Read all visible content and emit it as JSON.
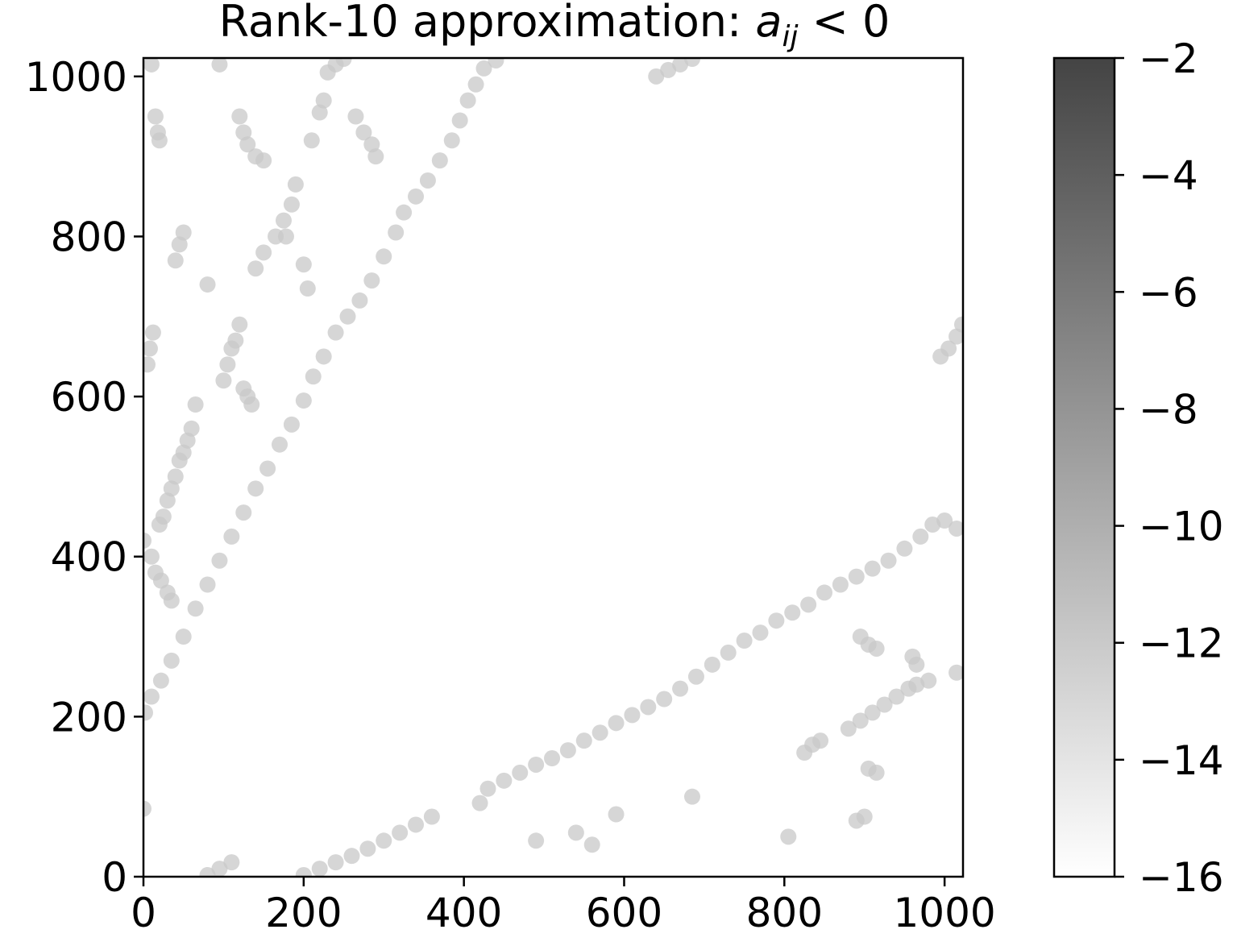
{
  "chart_data": {
    "type": "scatter",
    "title": {
      "prefix": "Rank-10 approximation: ",
      "var": "a",
      "sub": "ij",
      "relation": " < 0"
    },
    "xlabel": "",
    "ylabel": "",
    "xlim": [
      0,
      1023
    ],
    "ylim": [
      0,
      1023
    ],
    "xticks": [
      0,
      200,
      400,
      600,
      800,
      1000
    ],
    "yticks": [
      0,
      200,
      400,
      600,
      800,
      1000
    ],
    "xtick_labels": [
      "0",
      "200",
      "400",
      "600",
      "800",
      "1000"
    ],
    "ytick_labels": [
      "0",
      "200",
      "400",
      "600",
      "800",
      "1000"
    ],
    "grid": false,
    "marker_color": "#c8c8c8",
    "colorbar": {
      "range": [
        -16,
        -2
      ],
      "ticks": [
        -2,
        -4,
        -6,
        -8,
        -10,
        -12,
        -14,
        -16
      ],
      "tick_labels": [
        "−2",
        "−4",
        "−6",
        "−8",
        "−10",
        "−12",
        "−14",
        "−16"
      ],
      "color_low": "#ffffff",
      "color_high": "#444444"
    },
    "series": [
      {
        "points": [
          [
            2,
            205
          ],
          [
            10,
            225
          ],
          [
            22,
            245
          ],
          [
            35,
            270
          ],
          [
            50,
            300
          ],
          [
            65,
            335
          ],
          [
            80,
            365
          ],
          [
            95,
            395
          ],
          [
            110,
            425
          ],
          [
            125,
            455
          ],
          [
            140,
            485
          ],
          [
            155,
            510
          ],
          [
            170,
            540
          ],
          [
            185,
            565
          ],
          [
            200,
            595
          ],
          [
            212,
            625
          ],
          [
            225,
            650
          ],
          [
            240,
            680
          ],
          [
            255,
            700
          ],
          [
            270,
            720
          ],
          [
            285,
            745
          ],
          [
            300,
            775
          ],
          [
            315,
            805
          ],
          [
            325,
            830
          ],
          [
            340,
            850
          ],
          [
            355,
            870
          ],
          [
            370,
            895
          ],
          [
            385,
            920
          ],
          [
            395,
            945
          ],
          [
            405,
            970
          ],
          [
            415,
            990
          ],
          [
            425,
            1010
          ],
          [
            440,
            1020
          ],
          [
            200,
            2
          ],
          [
            220,
            10
          ],
          [
            240,
            18
          ],
          [
            260,
            26
          ],
          [
            280,
            35
          ],
          [
            300,
            45
          ],
          [
            320,
            55
          ],
          [
            340,
            65
          ],
          [
            360,
            75
          ],
          [
            420,
            92
          ],
          [
            430,
            110
          ],
          [
            450,
            120
          ],
          [
            470,
            130
          ],
          [
            490,
            140
          ],
          [
            510,
            148
          ],
          [
            530,
            158
          ],
          [
            550,
            170
          ],
          [
            570,
            180
          ],
          [
            590,
            192
          ],
          [
            610,
            202
          ],
          [
            630,
            212
          ],
          [
            650,
            222
          ],
          [
            670,
            235
          ],
          [
            690,
            250
          ],
          [
            710,
            265
          ],
          [
            730,
            280
          ],
          [
            750,
            295
          ],
          [
            770,
            305
          ],
          [
            790,
            320
          ],
          [
            810,
            330
          ],
          [
            830,
            340
          ],
          [
            850,
            355
          ],
          [
            870,
            365
          ],
          [
            890,
            375
          ],
          [
            910,
            385
          ],
          [
            930,
            395
          ],
          [
            950,
            410
          ],
          [
            970,
            425
          ],
          [
            985,
            440
          ],
          [
            1000,
            445
          ],
          [
            1015,
            435
          ],
          [
            80,
            2
          ],
          [
            95,
            10
          ],
          [
            110,
            18
          ],
          [
            10,
            1015
          ],
          [
            15,
            950
          ],
          [
            18,
            930
          ],
          [
            20,
            920
          ],
          [
            40,
            770
          ],
          [
            45,
            790
          ],
          [
            50,
            805
          ],
          [
            65,
            590
          ],
          [
            60,
            560
          ],
          [
            55,
            545
          ],
          [
            50,
            530
          ],
          [
            45,
            520
          ],
          [
            40,
            500
          ],
          [
            35,
            485
          ],
          [
            30,
            470
          ],
          [
            25,
            450
          ],
          [
            20,
            440
          ],
          [
            100,
            620
          ],
          [
            105,
            640
          ],
          [
            110,
            660
          ],
          [
            115,
            670
          ],
          [
            120,
            690
          ],
          [
            80,
            740
          ],
          [
            12,
            680
          ],
          [
            8,
            660
          ],
          [
            5,
            640
          ],
          [
            0,
            420
          ],
          [
            10,
            400
          ],
          [
            15,
            380
          ],
          [
            22,
            370
          ],
          [
            30,
            355
          ],
          [
            35,
            345
          ],
          [
            125,
            610
          ],
          [
            130,
            600
          ],
          [
            135,
            590
          ],
          [
            140,
            760
          ],
          [
            150,
            780
          ],
          [
            165,
            800
          ],
          [
            175,
            820
          ],
          [
            185,
            840
          ],
          [
            190,
            865
          ],
          [
            200,
            765
          ],
          [
            205,
            735
          ],
          [
            178,
            800
          ],
          [
            120,
            950
          ],
          [
            125,
            930
          ],
          [
            130,
            915
          ],
          [
            140,
            900
          ],
          [
            150,
            895
          ],
          [
            210,
            920
          ],
          [
            220,
            955
          ],
          [
            225,
            970
          ],
          [
            265,
            950
          ],
          [
            275,
            930
          ],
          [
            285,
            915
          ],
          [
            290,
            900
          ],
          [
            230,
            1005
          ],
          [
            240,
            1015
          ],
          [
            250,
            1022
          ],
          [
            640,
            1000
          ],
          [
            655,
            1008
          ],
          [
            670,
            1015
          ],
          [
            685,
            1022
          ],
          [
            995,
            650
          ],
          [
            1005,
            660
          ],
          [
            1015,
            675
          ],
          [
            1022,
            690
          ],
          [
            0,
            85
          ],
          [
            95,
            1015
          ],
          [
            490,
            45
          ],
          [
            540,
            55
          ],
          [
            560,
            40
          ],
          [
            590,
            78
          ],
          [
            685,
            100
          ],
          [
            805,
            50
          ],
          [
            825,
            155
          ],
          [
            835,
            165
          ],
          [
            845,
            170
          ],
          [
            890,
            70
          ],
          [
            900,
            75
          ],
          [
            905,
            135
          ],
          [
            915,
            130
          ],
          [
            880,
            185
          ],
          [
            895,
            195
          ],
          [
            910,
            205
          ],
          [
            925,
            215
          ],
          [
            940,
            225
          ],
          [
            955,
            235
          ],
          [
            965,
            240
          ],
          [
            980,
            245
          ],
          [
            960,
            275
          ],
          [
            965,
            265
          ],
          [
            895,
            300
          ],
          [
            905,
            290
          ],
          [
            915,
            285
          ],
          [
            1015,
            255
          ]
        ]
      }
    ]
  }
}
